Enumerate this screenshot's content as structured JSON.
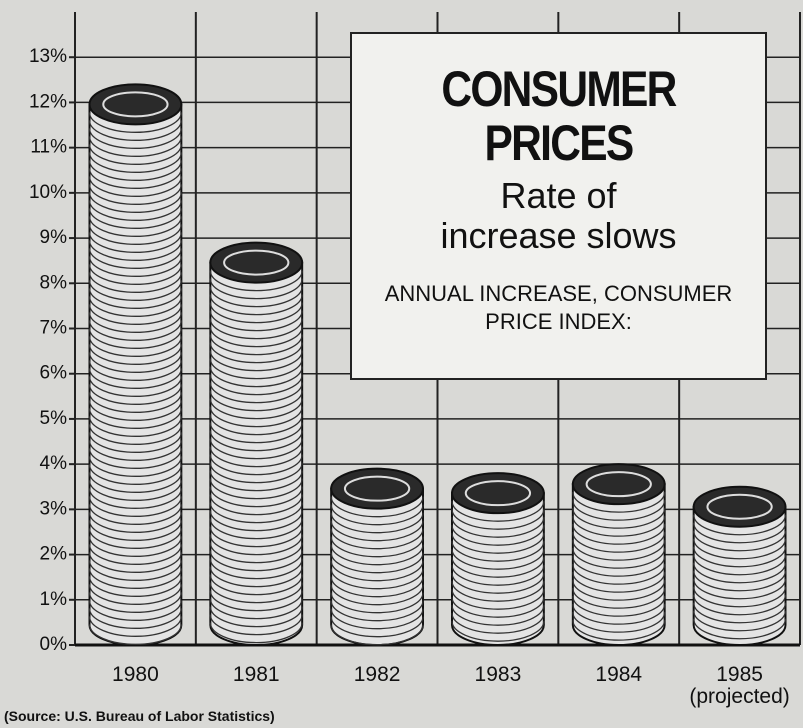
{
  "chart_data": {
    "type": "bar",
    "title": "CONSUMER PRICES",
    "subtitle": "Rate of increase slows",
    "annotation": "ANNUAL INCREASE, CONSUMER PRICE INDEX:",
    "source": "(Source: U.S. Bureau of Labor Statistics)",
    "categories": [
      "1980",
      "1981",
      "1982",
      "1983",
      "1984",
      "1985\n(projected)"
    ],
    "values": [
      12.4,
      8.9,
      3.9,
      3.8,
      4.0,
      3.5
    ],
    "color": "#e4e4e4",
    "ylim": [
      0,
      14
    ],
    "yticks": [
      {
        "value": 0,
        "label": "0%"
      },
      {
        "value": 1,
        "label": "1%"
      },
      {
        "value": 2,
        "label": "2%"
      },
      {
        "value": 3,
        "label": "3%"
      },
      {
        "value": 4,
        "label": "4%"
      },
      {
        "value": 5,
        "label": "5%"
      },
      {
        "value": 6,
        "label": "6%"
      },
      {
        "value": 7,
        "label": "7%"
      },
      {
        "value": 8,
        "label": "8%"
      },
      {
        "value": 9,
        "label": "9%"
      },
      {
        "value": 10,
        "label": "10%"
      },
      {
        "value": 11,
        "label": "11%"
      },
      {
        "value": 12,
        "label": "12%"
      },
      {
        "value": 13,
        "label": "13%"
      }
    ],
    "grid": true
  }
}
